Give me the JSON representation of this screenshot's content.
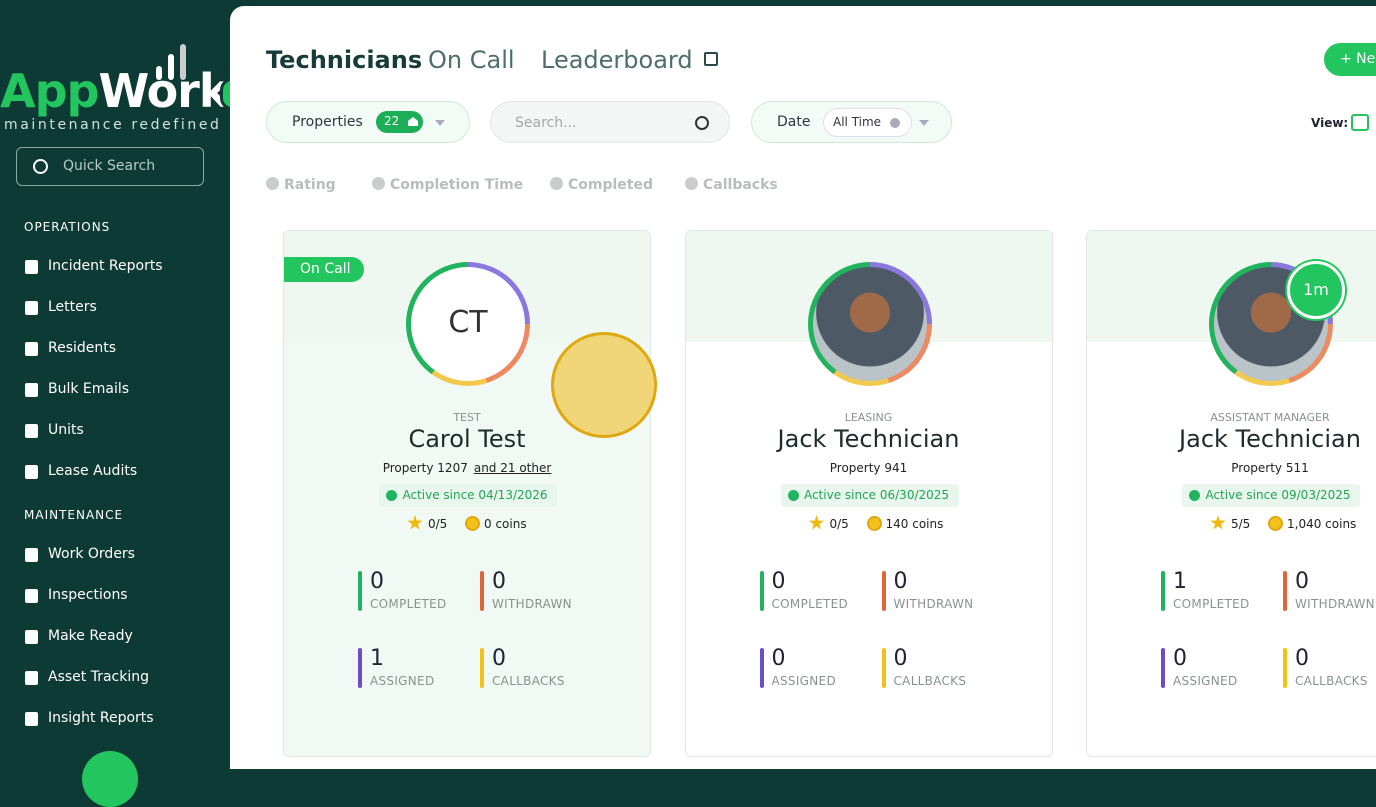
{
  "sidebar": {
    "logo_a": "App",
    "logo_b": "Work",
    "tagline": "maintenance redefined",
    "search": "Quick Search",
    "sections": [
      {
        "title": "OPERATIONS",
        "items": [
          "Incident Reports",
          "Letters",
          "Residents",
          "Bulk Emails",
          "Units",
          "Lease Audits"
        ]
      },
      {
        "title": "MAINTENANCE",
        "items": [
          "Work Orders",
          "Inspections",
          "Make Ready",
          "Asset Tracking",
          "Insight Reports"
        ]
      }
    ]
  },
  "tabs": [
    "Technicians",
    "On Call",
    "Leaderboard"
  ],
  "new_button": "+ New",
  "filters": {
    "properties": "Properties",
    "properties_count": 22,
    "search": "Search...",
    "date": "Date",
    "date_value": "All Time",
    "view": "View:"
  },
  "sort": [
    "Rating",
    "Completion Time",
    "Completed",
    "Callbacks"
  ],
  "cards": [
    {
      "badge": "On Call",
      "initials": "CT",
      "role": "TEST",
      "name": "Carol Test",
      "property": "Property 1207",
      "other": "and 21 other",
      "active": "Active since 04/13/2026",
      "rating": "0/5",
      "coins": "0 coins",
      "stats": [
        {
          "value": 0,
          "label": "COMPLETED"
        },
        {
          "value": 0,
          "label": "WITHDRAWN"
        },
        {
          "value": 1,
          "label": "ASSIGNED"
        },
        {
          "value": 0,
          "label": "CALLBACKS"
        }
      ]
    },
    {
      "role": "LEASING",
      "name": "Jack Technician",
      "property": "Property 941",
      "active": "Active since 06/30/2025",
      "rating": "0/5",
      "coins": "140 coins",
      "stats": [
        {
          "value": 0,
          "label": "COMPLETED"
        },
        {
          "value": 0,
          "label": "WITHDRAWN"
        },
        {
          "value": 0,
          "label": "ASSIGNED"
        },
        {
          "value": 0,
          "label": "CALLBACKS"
        }
      ]
    },
    {
      "timer": "1m",
      "role": "ASSISTANT MANAGER",
      "name": "Jack Technician",
      "property": "Property 511",
      "active": "Active since 09/03/2025",
      "rating": "5/5",
      "coins": "1,040 coins",
      "stats": [
        {
          "value": 1,
          "label": "COMPLETED"
        },
        {
          "value": 0,
          "label": "WITHDRAWN"
        },
        {
          "value": 0,
          "label": "ASSIGNED"
        },
        {
          "value": 0,
          "label": "CALLBACKS"
        }
      ]
    }
  ]
}
